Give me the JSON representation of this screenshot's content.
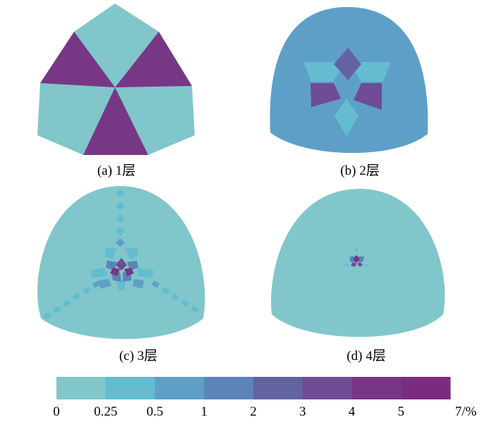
{
  "colors": {
    "c0": "#80C6CB",
    "c1": "#63BDCF",
    "c2": "#5E9FC8",
    "c3": "#5C83BA",
    "c4": "#6463A2",
    "c5": "#6F4C95",
    "c6": "#773785",
    "c7": "#7B2C7F"
  },
  "panels": [
    {
      "id": "a",
      "caption": "(a) 1层"
    },
    {
      "id": "b",
      "caption": "(b) 2层"
    },
    {
      "id": "c",
      "caption": "(c) 3层"
    },
    {
      "id": "d",
      "caption": "(d) 4层"
    }
  ],
  "colorbar": {
    "swatches": [
      "#80C6CB",
      "#63BDCF",
      "#5E9FC8",
      "#5C83BA",
      "#6463A2",
      "#6F4C95",
      "#773785",
      "#7B2C7F"
    ],
    "ticks": [
      "0",
      "0.25",
      "0.5",
      "1",
      "2",
      "3",
      "4",
      "5",
      "7/%"
    ]
  }
}
